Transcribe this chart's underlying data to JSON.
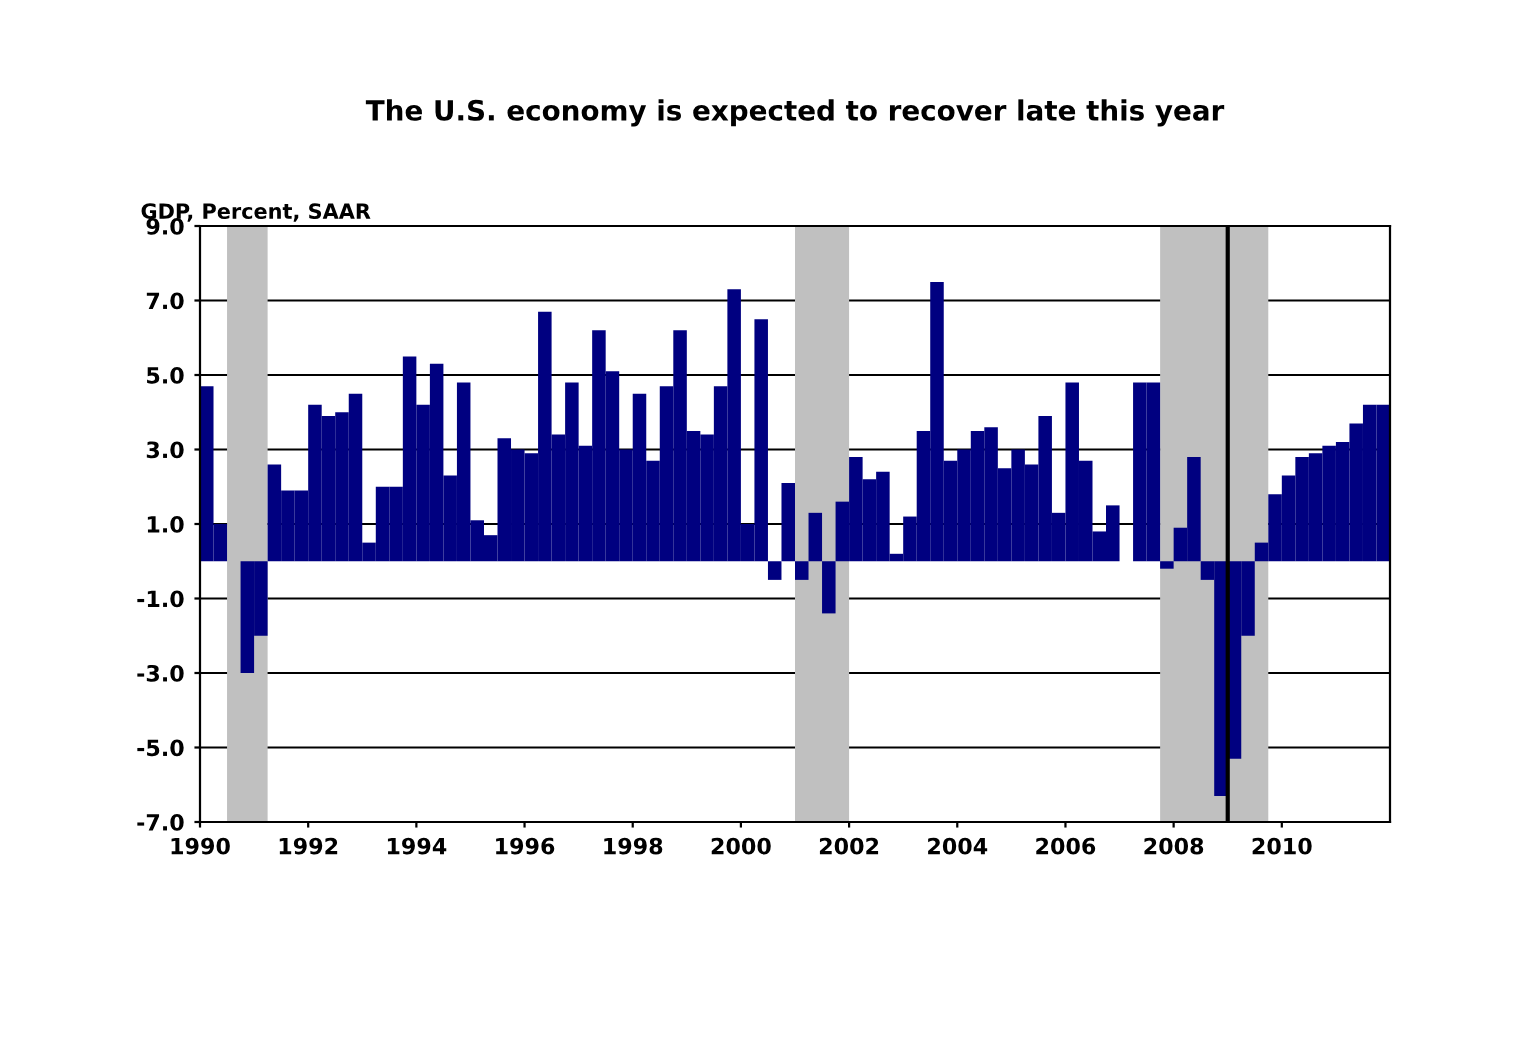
{
  "chart_data": {
    "type": "bar",
    "title": "The U.S. economy is expected to recover late this year",
    "ylabel": "GDP, Percent, SAAR",
    "x": [
      1990.125,
      1990.375,
      1990.625,
      1990.875,
      1991.125,
      1991.375,
      1991.625,
      1991.875,
      1992.125,
      1992.375,
      1992.625,
      1992.875,
      1993.125,
      1993.375,
      1993.625,
      1993.875,
      1994.125,
      1994.375,
      1994.625,
      1994.875,
      1995.125,
      1995.375,
      1995.625,
      1995.875,
      1996.125,
      1996.375,
      1996.625,
      1996.875,
      1997.125,
      1997.375,
      1997.625,
      1997.875,
      1998.125,
      1998.375,
      1998.625,
      1998.875,
      1999.125,
      1999.375,
      1999.625,
      1999.875,
      2000.125,
      2000.375,
      2000.625,
      2000.875,
      2001.125,
      2001.375,
      2001.625,
      2001.875,
      2002.125,
      2002.375,
      2002.625,
      2002.875,
      2003.125,
      2003.375,
      2003.625,
      2003.875,
      2004.125,
      2004.375,
      2004.625,
      2004.875,
      2005.125,
      2005.375,
      2005.625,
      2005.875,
      2006.125,
      2006.375,
      2006.625,
      2006.875,
      2007.125,
      2007.375,
      2007.625,
      2007.875,
      2008.125,
      2008.375,
      2008.625,
      2008.875,
      2009.125,
      2009.375,
      2009.625,
      2009.875,
      2010.125,
      2010.375,
      2010.625,
      2010.875,
      2011.125,
      2011.375,
      2011.625,
      2011.875
    ],
    "values": [
      4.7,
      1.0,
      0.0,
      -3.0,
      -2.0,
      2.6,
      1.9,
      1.9,
      4.2,
      3.9,
      4.0,
      4.5,
      0.5,
      2.0,
      2.0,
      5.5,
      4.2,
      5.3,
      2.3,
      4.8,
      1.1,
      0.7,
      3.3,
      3.0,
      2.9,
      6.7,
      3.4,
      4.8,
      3.1,
      6.2,
      5.1,
      3.0,
      4.5,
      2.7,
      4.7,
      6.2,
      3.5,
      3.4,
      4.7,
      7.3,
      1.0,
      6.5,
      -0.5,
      2.1,
      -0.5,
      1.3,
      -1.4,
      1.6,
      2.8,
      2.2,
      2.4,
      0.2,
      1.2,
      3.5,
      7.5,
      2.7,
      3.0,
      3.5,
      3.6,
      2.5,
      3.0,
      2.6,
      3.9,
      1.3,
      4.8,
      2.7,
      0.8,
      1.5,
      0.0,
      4.8,
      4.8,
      -0.2,
      0.9,
      2.8,
      -0.5,
      -6.3,
      -5.3,
      -2.0,
      0.5,
      1.8,
      2.3,
      2.8,
      2.9,
      3.1,
      3.2,
      3.7,
      4.2,
      4.2
    ],
    "color": "#000080",
    "xlim": [
      1990,
      2012
    ],
    "xticks": [
      1990,
      1992,
      1994,
      1996,
      1998,
      2000,
      2002,
      2004,
      2006,
      2008,
      2010
    ],
    "ylim": [
      -7,
      9
    ],
    "yticks": [
      {
        "value": 9,
        "label": "9.0"
      },
      {
        "value": 7,
        "label": "7.0"
      },
      {
        "value": 5,
        "label": "5.0"
      },
      {
        "value": 3,
        "label": "3.0"
      },
      {
        "value": 1,
        "label": "1.0"
      },
      {
        "value": -1,
        "label": "-1.0"
      },
      {
        "value": -3,
        "label": "-3.0"
      },
      {
        "value": -5,
        "label": "-5.0"
      },
      {
        "value": -7,
        "label": "-7.0"
      }
    ],
    "grid": "y",
    "bands": [
      {
        "axis": "x",
        "from": 1990.5,
        "to": 1991.25,
        "color": "#c0c0c0"
      },
      {
        "axis": "x",
        "from": 2001,
        "to": 2002,
        "color": "#c0c0c0"
      },
      {
        "axis": "x",
        "from": 2007.75,
        "to": 2009.75,
        "color": "#c0c0c0"
      }
    ],
    "ref_lines": [
      {
        "axis": "x",
        "value": 2009,
        "color": "#000000",
        "line_style": "solid"
      }
    ]
  }
}
